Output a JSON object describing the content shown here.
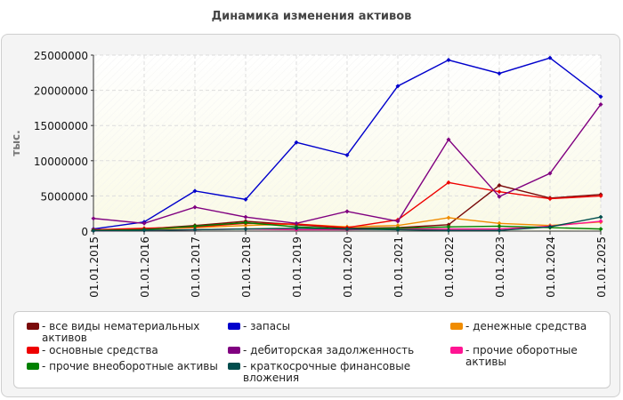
{
  "chart_data": {
    "type": "line",
    "title": "Динамика изменения активов",
    "xlabel": "",
    "ylabel": "тыс.",
    "ylim": [
      0,
      25000000
    ],
    "yticks": [
      "0",
      "5000000",
      "10000000",
      "15000000",
      "20000000",
      "25000000"
    ],
    "categories": [
      "01.01.2015",
      "01.01.2016",
      "01.01.2017",
      "01.01.2018",
      "01.01.2019",
      "01.01.2020",
      "01.01.2021",
      "01.01.2022",
      "01.01.2023",
      "01.01.2024",
      "01.01.2025"
    ],
    "grid": true,
    "legend_position": "bottom",
    "series": [
      {
        "name": "все виды нематериальных активов",
        "color": "#7a0a0a",
        "values": [
          100000,
          300000,
          800000,
          1400000,
          900000,
          400000,
          500000,
          900000,
          6500000,
          4700000,
          5200000
        ]
      },
      {
        "name": "запасы",
        "color": "#0000cc",
        "values": [
          300000,
          1300000,
          5700000,
          4500000,
          12600000,
          10800000,
          20600000,
          24300000,
          22400000,
          24600000,
          19100000
        ]
      },
      {
        "name": "денежные средства",
        "color": "#f08c00",
        "values": [
          100000,
          200000,
          500000,
          800000,
          1000000,
          600000,
          800000,
          1900000,
          1100000,
          800000,
          1300000
        ]
      },
      {
        "name": "основные средства",
        "color": "#ee0000",
        "values": [
          200000,
          400000,
          600000,
          1100000,
          1000000,
          500000,
          1600000,
          6900000,
          5600000,
          4600000,
          5000000
        ]
      },
      {
        "name": "дебиторская задолженность",
        "color": "#800080",
        "values": [
          1800000,
          1100000,
          3400000,
          2000000,
          1100000,
          2800000,
          1400000,
          13000000,
          4900000,
          8200000,
          18000000
        ]
      },
      {
        "name": "прочие оборотные активы",
        "color": "#ff1493",
        "values": [
          50000,
          100000,
          200000,
          300000,
          200000,
          200000,
          300000,
          300000,
          300000,
          700000,
          1400000
        ]
      },
      {
        "name": "прочие внеоборотные активы",
        "color": "#008000",
        "values": [
          100000,
          200000,
          700000,
          1200000,
          600000,
          300000,
          400000,
          600000,
          700000,
          500000,
          300000
        ]
      },
      {
        "name": "краткосрочные финансовые вложения",
        "color": "#004d4d",
        "values": [
          50000,
          100000,
          200000,
          300000,
          400000,
          300000,
          200000,
          100000,
          100000,
          600000,
          2000000
        ]
      }
    ]
  }
}
